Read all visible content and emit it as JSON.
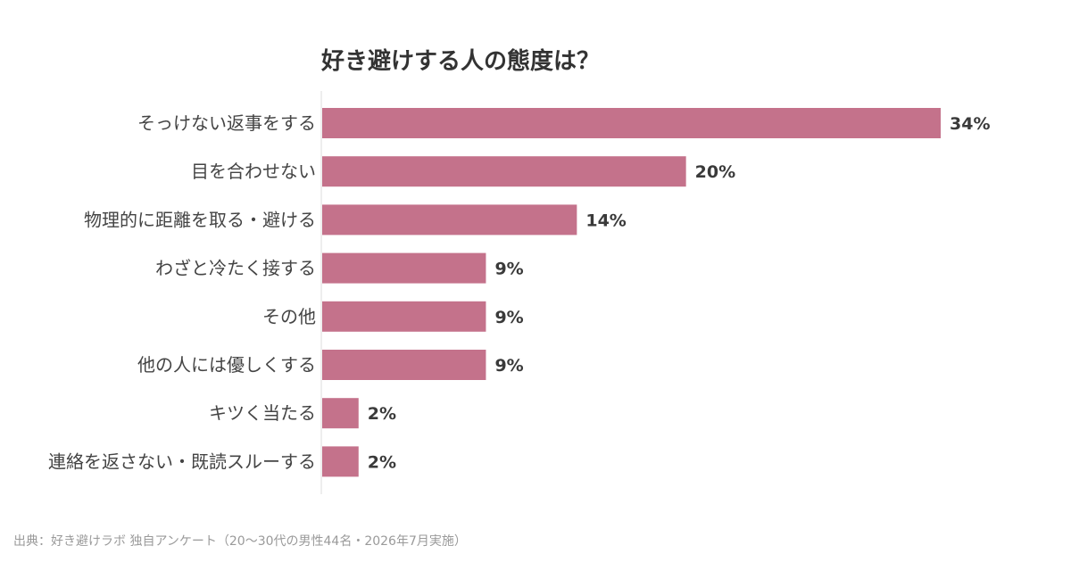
{
  "chart_data": {
    "type": "bar",
    "orientation": "horizontal",
    "title": "好き避けする人の態度は？",
    "categories": [
      "そっけない返事をする",
      "目を合わせない",
      "物理的に距離を取る・避ける",
      "わざと冷たく接する",
      "その他",
      "他の人には優しくする",
      "キツく当たる",
      "連絡を返さない・既読スルーする"
    ],
    "values": [
      34,
      20,
      14,
      9,
      9,
      9,
      2,
      2
    ],
    "data_labels": [
      "34%",
      "20%",
      "14%",
      "9%",
      "9%",
      "9%",
      "2%",
      "2%"
    ],
    "xlabel": "",
    "ylabel": "",
    "xlim": [
      0,
      34
    ],
    "grid": false,
    "legend": "none",
    "colors": {
      "bar": "#C4728B",
      "axis": "#DDDDDD"
    }
  },
  "source": "出典：好き避けラボ 独自アンケート（20〜30代の男性44名・2026年7月実施）"
}
